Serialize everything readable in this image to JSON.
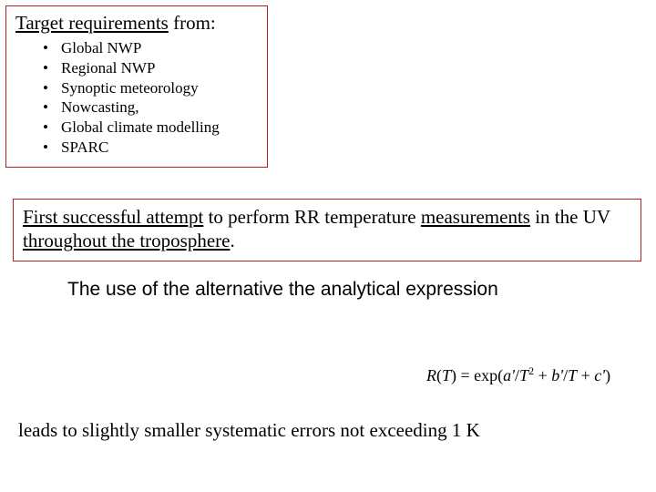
{
  "colors": {
    "box_border": "#b22222",
    "text": "#000000",
    "background": "#ffffff"
  },
  "box1": {
    "title_prefix": "Target requirements",
    "title_suffix": " from:",
    "items": [
      "Global NWP",
      "Regional NWP",
      "Synoptic meteorology",
      "Nowcasting,",
      "Global climate modelling",
      "SPARC"
    ]
  },
  "box2": {
    "u1": "First successful attempt",
    "mid1": " to perform RR temperature ",
    "u2": "measurements",
    "mid2": " in the UV ",
    "u3": "throughout the troposphere",
    "tail": "."
  },
  "line3": "The use of the alternative the analytical expression",
  "formula": {
    "R": "R",
    "open": "(",
    "T": "T",
    "close": ") = ",
    "exp": "exp",
    "lparen": "(",
    "a": "a'",
    "over1": "/",
    "T2": "T",
    "sq": "2",
    "plus1": " + ",
    "b": "b'",
    "over2": "/",
    "T3": "T",
    "plus2": " + ",
    "c": "c'",
    "rparen": ")"
  },
  "line4": "leads to slightly smaller systematic errors not exceeding 1 K"
}
